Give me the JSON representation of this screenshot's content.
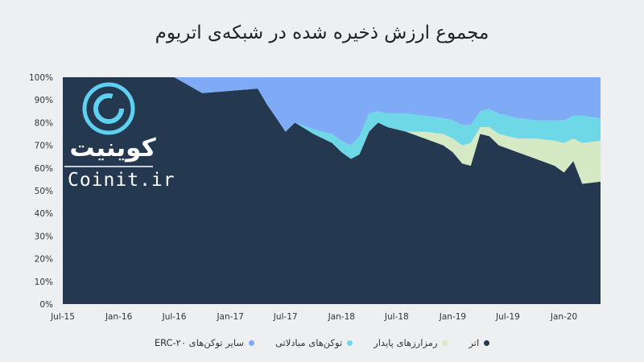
{
  "title": "مجموع ارزش ذخیره شده در شبکه‌ی اتریوم",
  "logo": {
    "fa_text": "کوینیت",
    "en_text": "Coinit.ir"
  },
  "colors": {
    "ether": "#243850",
    "stablecoins": "#d5e9c5",
    "exchange_tokens": "#6fd8e6",
    "other_erc20": "#7faaf6"
  },
  "chart_data": {
    "type": "area",
    "stacked": true,
    "percent": true,
    "x": [
      "2015-07",
      "2015-10",
      "2016-01",
      "2016-04",
      "2016-07",
      "2016-10",
      "2017-01",
      "2017-04",
      "2017-05",
      "2017-06",
      "2017-07",
      "2017-08",
      "2017-10",
      "2017-12",
      "2018-01",
      "2018-02",
      "2018-03",
      "2018-04",
      "2018-05",
      "2018-06",
      "2018-08",
      "2018-10",
      "2018-12",
      "2019-01",
      "2019-02",
      "2019-03",
      "2019-04",
      "2019-05",
      "2019-06",
      "2019-08",
      "2019-10",
      "2019-12",
      "2020-01",
      "2020-02",
      "2020-03",
      "2020-04"
    ],
    "series": [
      {
        "name": "اتر",
        "values": [
          100,
          100,
          100,
          100,
          100,
          93,
          94,
          95,
          88,
          82,
          76,
          80,
          75,
          71,
          67,
          64,
          66,
          76,
          80,
          78,
          76,
          73,
          70,
          67,
          62,
          61,
          75,
          74,
          70,
          67,
          64,
          61,
          58,
          63,
          53,
          54
        ]
      },
      {
        "name": "رمزارزهای پایدار",
        "values": [
          0,
          0,
          0,
          0,
          0,
          0,
          0,
          0,
          0,
          0,
          0,
          0,
          0,
          0,
          0,
          0,
          0,
          0,
          0,
          0,
          0,
          3,
          5,
          6,
          8,
          10,
          3,
          4,
          5,
          6,
          9,
          11,
          13,
          10,
          18,
          18
        ]
      },
      {
        "name": "توکن‌های مبادلاتی",
        "values": [
          0,
          0,
          0,
          0,
          0,
          0,
          0,
          0,
          0,
          0,
          0,
          0,
          2,
          4,
          5,
          6,
          8,
          8,
          5,
          6,
          8,
          7,
          7,
          8,
          9,
          8,
          7,
          8,
          9,
          9,
          8,
          9,
          10,
          10,
          12,
          10
        ]
      },
      {
        "name": "سایر توکن‌های ERC-۲۰",
        "values": [
          0,
          0,
          0,
          0,
          0,
          7,
          6,
          5,
          12,
          18,
          24,
          20,
          23,
          25,
          28,
          30,
          26,
          16,
          15,
          16,
          16,
          17,
          18,
          19,
          21,
          21,
          15,
          14,
          16,
          18,
          19,
          19,
          19,
          17,
          17,
          18
        ]
      }
    ],
    "x_ticks": [
      "Jul-15",
      "Jan-16",
      "Jul-16",
      "Jan-17",
      "Jul-17",
      "Jan-18",
      "Jul-18",
      "Jan-19",
      "Jul-19",
      "Jan-20"
    ],
    "y_ticks": [
      "0%",
      "10%",
      "20%",
      "30%",
      "40%",
      "50%",
      "60%",
      "70%",
      "80%",
      "90%",
      "100%"
    ],
    "ylim": [
      0,
      100
    ],
    "legend_position": "bottom"
  }
}
